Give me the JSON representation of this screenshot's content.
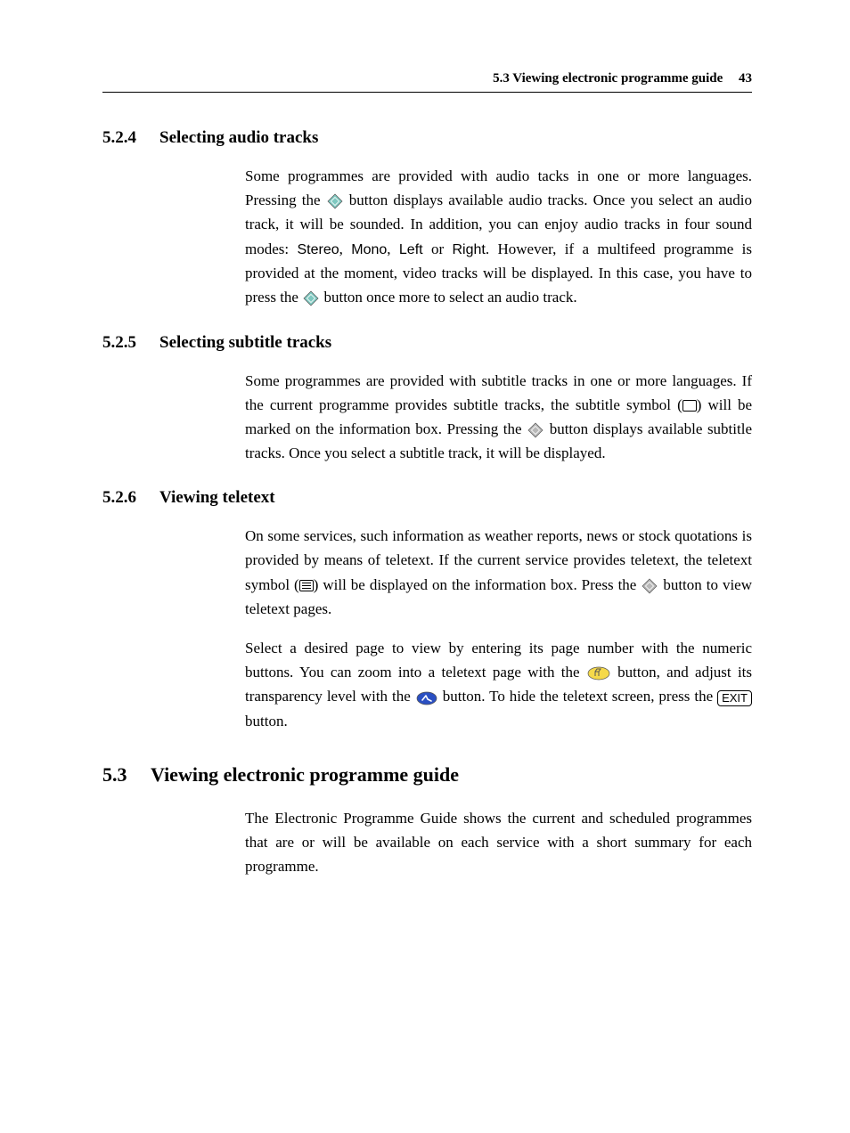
{
  "header": {
    "title": "5.3 Viewing electronic programme guide",
    "page_number": "43"
  },
  "icons": {
    "teal_diamond_color": "#7fc8c0",
    "gray_diamond_color": "#b8b8b8",
    "yellow_oval_color": "#f5d94a",
    "blue_oval_color": "#2a4fc2",
    "stroke": "#555555",
    "exit_label": "EXIT"
  },
  "sections": [
    {
      "number": "5.2.4",
      "title": "Selecting audio tracks",
      "paragraphs": [
        {
          "runs": [
            {
              "t": "Some programmes are provided with audio tacks in one or more languages. Pressing the "
            },
            {
              "icon": "teal-diamond"
            },
            {
              "t": " button displays available audio tracks. Once you select an audio track, it will be sounded. In addition, you can enjoy audio tracks in four sound modes: "
            },
            {
              "t": "Stereo",
              "cls": "sans"
            },
            {
              "t": ", "
            },
            {
              "t": "Mono",
              "cls": "sans"
            },
            {
              "t": ", "
            },
            {
              "t": "Left",
              "cls": "sans"
            },
            {
              "t": " or "
            },
            {
              "t": "Right",
              "cls": "sans"
            },
            {
              "t": ".  However, if a multifeed programme is provided at the moment, video tracks will be displayed. In this case, you have to press the "
            },
            {
              "icon": "teal-diamond"
            },
            {
              "t": " button once more to select an audio track."
            }
          ]
        }
      ]
    },
    {
      "number": "5.2.5",
      "title": "Selecting subtitle tracks",
      "paragraphs": [
        {
          "runs": [
            {
              "t": "Some programmes are provided with subtitle tracks in one or more languages. If the current programme provides subtitle tracks, the subtitle symbol ("
            },
            {
              "icon": "subtitle-symbol"
            },
            {
              "t": ") will be marked on the information box. Pressing the "
            },
            {
              "icon": "gray-diamond"
            },
            {
              "t": " button displays available subtitle tracks. Once you select a subtitle track, it will be displayed."
            }
          ]
        }
      ]
    },
    {
      "number": "5.2.6",
      "title": "Viewing teletext",
      "paragraphs": [
        {
          "runs": [
            {
              "t": "On some services, such information as weather reports, news or stock quotations is provided by means of teletext. If the current service provides teletext, the teletext symbol ("
            },
            {
              "icon": "teletext-symbol"
            },
            {
              "t": ") will be displayed on the information box. Press the "
            },
            {
              "icon": "gray-diamond"
            },
            {
              "t": " button to view teletext pages."
            }
          ]
        },
        {
          "runs": [
            {
              "t": "Select a desired page to view by entering its page number with the numeric buttons. You can zoom into a teletext page with the "
            },
            {
              "icon": "yellow-oval"
            },
            {
              "t": " button, and adjust its transparency level with the "
            },
            {
              "icon": "blue-oval"
            },
            {
              "t": " button. To hide the teletext screen, press the "
            },
            {
              "icon": "exit-key"
            },
            {
              "t": " button."
            }
          ]
        }
      ]
    }
  ],
  "mainSection": {
    "number": "5.3",
    "title": "Viewing electronic programme guide",
    "paragraphs": [
      {
        "runs": [
          {
            "t": "The Electronic Programme Guide shows the current and scheduled programmes that are or will be available on each service with a short summary for each programme."
          }
        ]
      }
    ]
  }
}
